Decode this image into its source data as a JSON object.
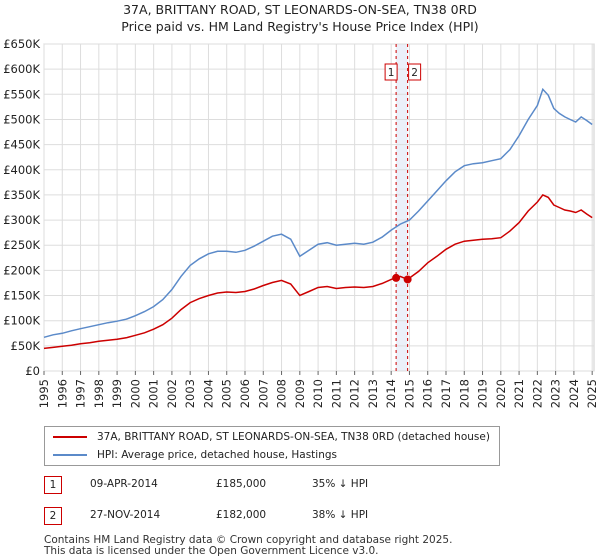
{
  "title_line1": "37A, BRITTANY ROAD, ST LEONARDS-ON-SEA, TN38 0RD",
  "title_line2": "Price paid vs. HM Land Registry's House Price Index (HPI)",
  "legend": {
    "red_label": "37A, BRITTANY ROAD, ST LEONARDS-ON-SEA, TN38 0RD (detached house)",
    "blue_label": "HPI: Average price, detached house, Hastings",
    "red_color": "#cc0000",
    "blue_color": "#5b8ac9"
  },
  "transactions": [
    {
      "num": "1",
      "date": "09-APR-2014",
      "price": "£185,000",
      "hpi": "35% ↓ HPI"
    },
    {
      "num": "2",
      "date": "27-NOV-2014",
      "price": "£182,000",
      "hpi": "38% ↓ HPI"
    }
  ],
  "footer_line1": "Contains HM Land Registry data © Crown copyright and database right 2025.",
  "footer_line2": "This data is licensed under the Open Government Licence v3.0.",
  "chart_data": {
    "type": "line",
    "title": "Price paid vs. HM Land Registry's House Price Index (HPI)",
    "xlim": [
      1995,
      2025.1
    ],
    "ylim": [
      0,
      650000
    ],
    "x_ticks": [
      1995,
      1996,
      1997,
      1998,
      1999,
      2000,
      2001,
      2002,
      2003,
      2004,
      2005,
      2006,
      2007,
      2008,
      2009,
      2010,
      2011,
      2012,
      2013,
      2014,
      2015,
      2016,
      2017,
      2018,
      2019,
      2020,
      2021,
      2022,
      2023,
      2024,
      2025
    ],
    "y_ticks": [
      0,
      50000,
      100000,
      150000,
      200000,
      250000,
      300000,
      350000,
      400000,
      450000,
      500000,
      550000,
      600000,
      650000
    ],
    "y_tick_labels": [
      "£0",
      "£50K",
      "£100K",
      "£150K",
      "£200K",
      "£250K",
      "£300K",
      "£350K",
      "£400K",
      "£450K",
      "£500K",
      "£550K",
      "£600K",
      "£650K"
    ],
    "grid": true,
    "series": [
      {
        "name": "HPI: Average price, detached house, Hastings",
        "color": "#5b8ac9",
        "x": [
          1995.0,
          1995.5,
          1996.0,
          1996.5,
          1997.0,
          1997.5,
          1998.0,
          1998.5,
          1999.0,
          1999.5,
          2000.0,
          2000.5,
          2001.0,
          2001.5,
          2002.0,
          2002.5,
          2003.0,
          2003.5,
          2004.0,
          2004.5,
          2005.0,
          2005.5,
          2006.0,
          2006.5,
          2007.0,
          2007.5,
          2008.0,
          2008.5,
          2009.0,
          2009.5,
          2010.0,
          2010.5,
          2011.0,
          2011.5,
          2012.0,
          2012.5,
          2013.0,
          2013.5,
          2014.0,
          2014.5,
          2015.0,
          2015.5,
          2016.0,
          2016.5,
          2017.0,
          2017.5,
          2018.0,
          2018.5,
          2019.0,
          2019.5,
          2020.0,
          2020.5,
          2021.0,
          2021.5,
          2022.0,
          2022.3,
          2022.6,
          2022.9,
          2023.2,
          2023.5,
          2023.8,
          2024.1,
          2024.4,
          2024.7,
          2025.0
        ],
        "values": [
          67000,
          72000,
          75000,
          80000,
          84000,
          88000,
          92000,
          96000,
          99000,
          103000,
          110000,
          118000,
          128000,
          142000,
          162000,
          188000,
          210000,
          223000,
          233000,
          238000,
          238000,
          236000,
          240000,
          248000,
          258000,
          268000,
          272000,
          262000,
          228000,
          240000,
          252000,
          255000,
          250000,
          252000,
          254000,
          252000,
          256000,
          266000,
          280000,
          292000,
          300000,
          318000,
          338000,
          358000,
          378000,
          396000,
          408000,
          412000,
          414000,
          418000,
          422000,
          440000,
          468000,
          500000,
          528000,
          560000,
          548000,
          522000,
          512000,
          505000,
          500000,
          495000,
          505000,
          498000,
          490000
        ]
      },
      {
        "name": "37A, BRITTANY ROAD, ST LEONARDS-ON-SEA, TN38 0RD (detached house)",
        "color": "#cc0000",
        "x": [
          1995.0,
          1995.5,
          1996.0,
          1996.5,
          1997.0,
          1997.5,
          1998.0,
          1998.5,
          1999.0,
          1999.5,
          2000.0,
          2000.5,
          2001.0,
          2001.5,
          2002.0,
          2002.5,
          2003.0,
          2003.5,
          2004.0,
          2004.5,
          2005.0,
          2005.5,
          2006.0,
          2006.5,
          2007.0,
          2007.5,
          2008.0,
          2008.5,
          2009.0,
          2009.5,
          2010.0,
          2010.5,
          2011.0,
          2011.5,
          2012.0,
          2012.5,
          2013.0,
          2013.5,
          2014.0,
          2014.27,
          2014.5,
          2014.9,
          2015.2,
          2015.5,
          2016.0,
          2016.5,
          2017.0,
          2017.5,
          2018.0,
          2018.5,
          2019.0,
          2019.5,
          2020.0,
          2020.5,
          2021.0,
          2021.5,
          2022.0,
          2022.3,
          2022.6,
          2022.9,
          2023.2,
          2023.5,
          2023.8,
          2024.1,
          2024.4,
          2024.7,
          2025.0
        ],
        "values": [
          45000,
          47000,
          49000,
          51000,
          54000,
          56000,
          59000,
          61000,
          63000,
          66000,
          71000,
          76000,
          83000,
          92000,
          105000,
          122000,
          136000,
          144000,
          150000,
          155000,
          157000,
          156000,
          158000,
          163000,
          170000,
          176000,
          180000,
          173000,
          150000,
          158000,
          166000,
          168000,
          164000,
          166000,
          167000,
          166000,
          168000,
          174000,
          182000,
          185000,
          188000,
          182000,
          190000,
          198000,
          215000,
          228000,
          242000,
          252000,
          258000,
          260000,
          262000,
          263000,
          265000,
          278000,
          295000,
          318000,
          336000,
          350000,
          345000,
          330000,
          325000,
          320000,
          318000,
          315000,
          320000,
          312000,
          305000
        ]
      }
    ],
    "sales": [
      {
        "label": "1",
        "x": 2014.27,
        "value": 185000
      },
      {
        "label": "2",
        "x": 2014.9,
        "value": 182000
      }
    ],
    "highlight_band": [
      2014.27,
      2014.9
    ]
  }
}
